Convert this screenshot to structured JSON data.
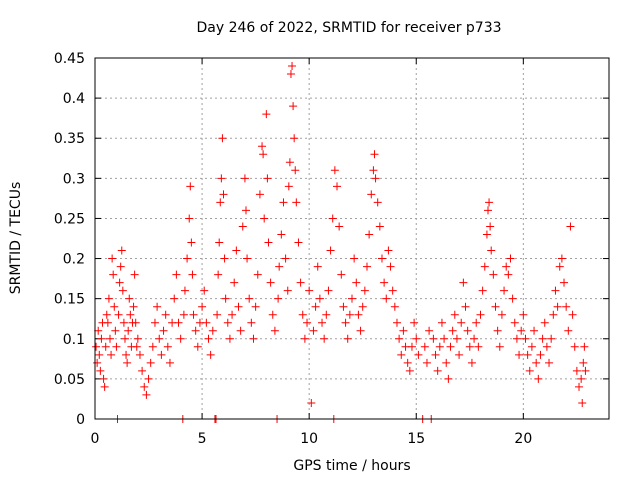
{
  "chart_data": {
    "type": "scatter",
    "title": "Day 246 of 2022, SRMTID for receiver p733",
    "xlabel": "GPS time / hours",
    "ylabel": "SRMTID / TECUs",
    "xlim": [
      0,
      24
    ],
    "ylim": [
      0,
      0.45
    ],
    "x_ticks": [
      0,
      5,
      10,
      15,
      20
    ],
    "x_tick_labels": [
      "0",
      "5",
      "10",
      "15",
      "20"
    ],
    "y_ticks": [
      0,
      0.05,
      0.1,
      0.15,
      0.2,
      0.25,
      0.3,
      0.35,
      0.4,
      0.45
    ],
    "y_tick_labels": [
      "0",
      "0.05",
      "0.1",
      "0.15",
      "0.2",
      "0.25",
      "0.3",
      "0.35",
      "0.4",
      "0.45"
    ],
    "grid": true,
    "marker": "+",
    "color": "#ff0000",
    "series": [
      {
        "name": "SRMTID",
        "points": [
          [
            0.05,
            0.09
          ],
          [
            0.1,
            0.07
          ],
          [
            0.15,
            0.11
          ],
          [
            0.2,
            0.08
          ],
          [
            0.25,
            0.06
          ],
          [
            0.3,
            0.1
          ],
          [
            0.35,
            0.12
          ],
          [
            0.4,
            0.05
          ],
          [
            0.45,
            0.04
          ],
          [
            0.5,
            0.09
          ],
          [
            0.55,
            0.13
          ],
          [
            0.6,
            0.12
          ],
          [
            0.65,
            0.15
          ],
          [
            0.7,
            0.1
          ],
          [
            0.75,
            0.08
          ],
          [
            0.8,
            0.2
          ],
          [
            0.85,
            0.18
          ],
          [
            0.9,
            0.14
          ],
          [
            0.95,
            0.11
          ],
          [
            1.0,
            0.09
          ],
          [
            1.05,
            0.0
          ],
          [
            1.1,
            0.13
          ],
          [
            1.15,
            0.17
          ],
          [
            1.2,
            0.19
          ],
          [
            1.25,
            0.21
          ],
          [
            1.3,
            0.16
          ],
          [
            1.35,
            0.12
          ],
          [
            1.4,
            0.1
          ],
          [
            1.45,
            0.08
          ],
          [
            1.5,
            0.07
          ],
          [
            1.55,
            0.11
          ],
          [
            1.6,
            0.15
          ],
          [
            1.65,
            0.13
          ],
          [
            1.7,
            0.09
          ],
          [
            1.75,
            0.12
          ],
          [
            1.8,
            0.14
          ],
          [
            1.85,
            0.18
          ],
          [
            1.9,
            0.12
          ],
          [
            1.95,
            0.09
          ],
          [
            2.0,
            0.1
          ],
          [
            2.1,
            0.08
          ],
          [
            2.2,
            0.06
          ],
          [
            2.3,
            0.04
          ],
          [
            2.4,
            0.03
          ],
          [
            2.5,
            0.05
          ],
          [
            2.6,
            0.07
          ],
          [
            2.7,
            0.09
          ],
          [
            2.8,
            0.12
          ],
          [
            2.9,
            0.14
          ],
          [
            3.0,
            0.1
          ],
          [
            3.1,
            0.08
          ],
          [
            3.2,
            0.11
          ],
          [
            3.3,
            0.13
          ],
          [
            3.4,
            0.09
          ],
          [
            3.5,
            0.07
          ],
          [
            3.6,
            0.12
          ],
          [
            3.7,
            0.15
          ],
          [
            3.8,
            0.18
          ],
          [
            3.9,
            0.12
          ],
          [
            4.0,
            0.1
          ],
          [
            4.1,
            0.0
          ],
          [
            4.15,
            0.13
          ],
          [
            4.2,
            0.16
          ],
          [
            4.3,
            0.2
          ],
          [
            4.4,
            0.25
          ],
          [
            4.45,
            0.29
          ],
          [
            4.5,
            0.22
          ],
          [
            4.55,
            0.18
          ],
          [
            4.6,
            0.13
          ],
          [
            4.7,
            0.11
          ],
          [
            4.8,
            0.09
          ],
          [
            4.9,
            0.12
          ],
          [
            5.0,
            0.14
          ],
          [
            5.1,
            0.16
          ],
          [
            5.2,
            0.12
          ],
          [
            5.3,
            0.1
          ],
          [
            5.4,
            0.08
          ],
          [
            5.5,
            0.11
          ],
          [
            5.6,
            0.0
          ],
          [
            5.65,
            0.0
          ],
          [
            5.7,
            0.13
          ],
          [
            5.75,
            0.18
          ],
          [
            5.8,
            0.22
          ],
          [
            5.85,
            0.27
          ],
          [
            5.9,
            0.3
          ],
          [
            5.95,
            0.35
          ],
          [
            6.0,
            0.28
          ],
          [
            6.05,
            0.2
          ],
          [
            6.1,
            0.15
          ],
          [
            6.2,
            0.12
          ],
          [
            6.3,
            0.1
          ],
          [
            6.4,
            0.13
          ],
          [
            6.5,
            0.17
          ],
          [
            6.6,
            0.21
          ],
          [
            6.7,
            0.14
          ],
          [
            6.8,
            0.11
          ],
          [
            6.9,
            0.24
          ],
          [
            7.0,
            0.3
          ],
          [
            7.05,
            0.26
          ],
          [
            7.1,
            0.2
          ],
          [
            7.2,
            0.15
          ],
          [
            7.3,
            0.12
          ],
          [
            7.4,
            0.1
          ],
          [
            7.5,
            0.14
          ],
          [
            7.6,
            0.18
          ],
          [
            7.7,
            0.28
          ],
          [
            7.8,
            0.34
          ],
          [
            7.85,
            0.33
          ],
          [
            7.9,
            0.25
          ],
          [
            8.0,
            0.38
          ],
          [
            8.05,
            0.3
          ],
          [
            8.1,
            0.22
          ],
          [
            8.2,
            0.17
          ],
          [
            8.3,
            0.13
          ],
          [
            8.4,
            0.11
          ],
          [
            8.5,
            0.0
          ],
          [
            8.55,
            0.15
          ],
          [
            8.6,
            0.19
          ],
          [
            8.7,
            0.23
          ],
          [
            8.8,
            0.27
          ],
          [
            8.9,
            0.2
          ],
          [
            9.0,
            0.16
          ],
          [
            9.05,
            0.29
          ],
          [
            9.1,
            0.32
          ],
          [
            9.15,
            0.43
          ],
          [
            9.2,
            0.44
          ],
          [
            9.25,
            0.39
          ],
          [
            9.3,
            0.35
          ],
          [
            9.35,
            0.31
          ],
          [
            9.4,
            0.27
          ],
          [
            9.5,
            0.22
          ],
          [
            9.6,
            0.17
          ],
          [
            9.7,
            0.13
          ],
          [
            9.8,
            0.1
          ],
          [
            9.9,
            0.12
          ],
          [
            10.0,
            0.16
          ],
          [
            10.1,
            0.02
          ],
          [
            10.2,
            0.11
          ],
          [
            10.3,
            0.14
          ],
          [
            10.4,
            0.19
          ],
          [
            10.5,
            0.15
          ],
          [
            10.6,
            0.12
          ],
          [
            10.7,
            0.1
          ],
          [
            10.8,
            0.13
          ],
          [
            10.9,
            0.16
          ],
          [
            11.0,
            0.21
          ],
          [
            11.1,
            0.25
          ],
          [
            11.15,
            0.0
          ],
          [
            11.2,
            0.31
          ],
          [
            11.3,
            0.29
          ],
          [
            11.4,
            0.24
          ],
          [
            11.5,
            0.18
          ],
          [
            11.6,
            0.14
          ],
          [
            11.7,
            0.12
          ],
          [
            11.8,
            0.1
          ],
          [
            11.9,
            0.13
          ],
          [
            12.0,
            0.15
          ],
          [
            12.1,
            0.2
          ],
          [
            12.2,
            0.17
          ],
          [
            12.3,
            0.13
          ],
          [
            12.4,
            0.11
          ],
          [
            12.5,
            0.14
          ],
          [
            12.6,
            0.16
          ],
          [
            12.7,
            0.19
          ],
          [
            12.8,
            0.23
          ],
          [
            12.9,
            0.28
          ],
          [
            13.0,
            0.31
          ],
          [
            13.05,
            0.33
          ],
          [
            13.1,
            0.3
          ],
          [
            13.2,
            0.27
          ],
          [
            13.3,
            0.24
          ],
          [
            13.4,
            0.2
          ],
          [
            13.5,
            0.17
          ],
          [
            13.6,
            0.15
          ],
          [
            13.7,
            0.21
          ],
          [
            13.8,
            0.19
          ],
          [
            13.9,
            0.16
          ],
          [
            14.0,
            0.14
          ],
          [
            14.1,
            0.12
          ],
          [
            14.2,
            0.1
          ],
          [
            14.3,
            0.08
          ],
          [
            14.4,
            0.11
          ],
          [
            14.5,
            0.09
          ],
          [
            14.6,
            0.07
          ],
          [
            14.7,
            0.06
          ],
          [
            14.8,
            0.09
          ],
          [
            14.9,
            0.12
          ],
          [
            15.0,
            0.1
          ],
          [
            15.1,
            0.08
          ],
          [
            15.3,
            0.0
          ],
          [
            15.4,
            0.09
          ],
          [
            15.5,
            0.07
          ],
          [
            15.6,
            0.11
          ],
          [
            15.7,
            0.0
          ],
          [
            15.8,
            0.1
          ],
          [
            15.9,
            0.08
          ],
          [
            16.0,
            0.06
          ],
          [
            16.1,
            0.09
          ],
          [
            16.2,
            0.12
          ],
          [
            16.3,
            0.1
          ],
          [
            16.4,
            0.07
          ],
          [
            16.5,
            0.05
          ],
          [
            16.6,
            0.09
          ],
          [
            16.7,
            0.11
          ],
          [
            16.8,
            0.13
          ],
          [
            16.9,
            0.1
          ],
          [
            17.0,
            0.08
          ],
          [
            17.1,
            0.12
          ],
          [
            17.2,
            0.17
          ],
          [
            17.3,
            0.14
          ],
          [
            17.4,
            0.11
          ],
          [
            17.5,
            0.09
          ],
          [
            17.6,
            0.07
          ],
          [
            17.7,
            0.1
          ],
          [
            17.8,
            0.12
          ],
          [
            17.9,
            0.09
          ],
          [
            18.0,
            0.13
          ],
          [
            18.1,
            0.16
          ],
          [
            18.2,
            0.19
          ],
          [
            18.3,
            0.23
          ],
          [
            18.35,
            0.26
          ],
          [
            18.4,
            0.27
          ],
          [
            18.45,
            0.24
          ],
          [
            18.5,
            0.21
          ],
          [
            18.6,
            0.18
          ],
          [
            18.7,
            0.14
          ],
          [
            18.8,
            0.11
          ],
          [
            18.9,
            0.09
          ],
          [
            19.0,
            0.13
          ],
          [
            19.1,
            0.16
          ],
          [
            19.2,
            0.19
          ],
          [
            19.3,
            0.18
          ],
          [
            19.4,
            0.2
          ],
          [
            19.5,
            0.15
          ],
          [
            19.6,
            0.12
          ],
          [
            19.7,
            0.1
          ],
          [
            19.8,
            0.08
          ],
          [
            19.9,
            0.11
          ],
          [
            20.0,
            0.13
          ],
          [
            20.1,
            0.1
          ],
          [
            20.2,
            0.08
          ],
          [
            20.3,
            0.06
          ],
          [
            20.4,
            0.09
          ],
          [
            20.5,
            0.11
          ],
          [
            20.6,
            0.07
          ],
          [
            20.7,
            0.05
          ],
          [
            20.8,
            0.08
          ],
          [
            20.9,
            0.1
          ],
          [
            21.0,
            0.12
          ],
          [
            21.1,
            0.09
          ],
          [
            21.2,
            0.07
          ],
          [
            21.3,
            0.1
          ],
          [
            21.4,
            0.13
          ],
          [
            21.5,
            0.16
          ],
          [
            21.6,
            0.14
          ],
          [
            21.7,
            0.19
          ],
          [
            21.8,
            0.2
          ],
          [
            21.9,
            0.17
          ],
          [
            22.0,
            0.14
          ],
          [
            22.1,
            0.11
          ],
          [
            22.2,
            0.24
          ],
          [
            22.3,
            0.13
          ],
          [
            22.4,
            0.09
          ],
          [
            22.5,
            0.06
          ],
          [
            22.6,
            0.04
          ],
          [
            22.7,
            0.05
          ],
          [
            22.75,
            0.02
          ],
          [
            22.8,
            0.07
          ],
          [
            22.85,
            0.09
          ],
          [
            22.9,
            0.06
          ]
        ]
      }
    ]
  }
}
